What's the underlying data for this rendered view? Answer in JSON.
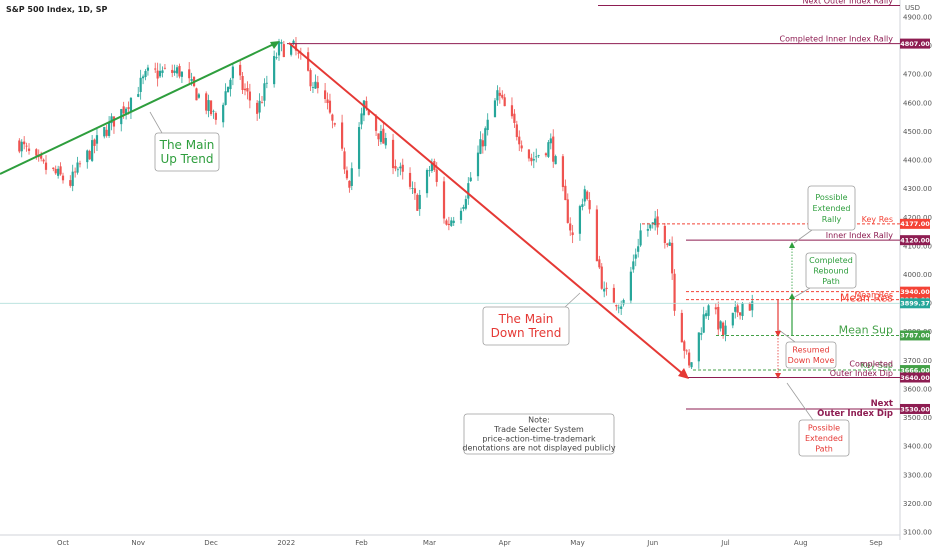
{
  "chart_data": {
    "type": "candlestick",
    "title": "S&P 500 Index, 1D, SP",
    "currency_label": "USD",
    "y_axis": {
      "min": 3100,
      "max": 4950,
      "ticks": [
        3100,
        3200,
        3300,
        3400,
        3500,
        3600,
        3700,
        3800,
        3900,
        4000,
        4100,
        4200,
        4300,
        4400,
        4500,
        4600,
        4700,
        4800,
        4900
      ],
      "tick_labels": [
        "3100.00",
        "3200.00",
        "3300.00",
        "3400.00",
        "3500.00",
        "3600.00",
        "3700.00",
        "3800.00",
        "3900.00",
        "4000.00",
        "4100.00",
        "4200.00",
        "4300.00",
        "4400.00",
        "4500.00",
        "4600.00",
        "4700.00",
        "4800.00",
        "4900.00"
      ]
    },
    "x_axis": {
      "start": "2021-09-13",
      "end": "2022-09-30",
      "labels": [
        {
          "text": "Oct",
          "date": "2021-10-01"
        },
        {
          "text": "Nov",
          "date": "2021-11-01"
        },
        {
          "text": "Dec",
          "date": "2021-12-01"
        },
        {
          "text": "2022",
          "date": "2022-01-01"
        },
        {
          "text": "Feb",
          "date": "2022-02-01"
        },
        {
          "text": "Mar",
          "date": "2022-03-01"
        },
        {
          "text": "Apr",
          "date": "2022-04-01"
        },
        {
          "text": "May",
          "date": "2022-05-01"
        },
        {
          "text": "Jun",
          "date": "2022-06-01"
        },
        {
          "text": "Jul",
          "date": "2022-07-01"
        },
        {
          "text": "Aug",
          "date": "2022-08-01"
        },
        {
          "text": "Sep",
          "date": "2022-09-01"
        }
      ]
    },
    "up_color": "#26a69a",
    "down_color": "#ef5350",
    "price_keypoints": [
      {
        "date": "2021-09-13",
        "price": 4460
      },
      {
        "date": "2021-09-20",
        "price": 4390
      },
      {
        "date": "2021-10-04",
        "price": 4320
      },
      {
        "date": "2021-10-08",
        "price": 4380
      },
      {
        "date": "2021-10-18",
        "price": 4500
      },
      {
        "date": "2021-10-25",
        "price": 4570
      },
      {
        "date": "2021-11-05",
        "price": 4700
      },
      {
        "date": "2021-11-18",
        "price": 4710
      },
      {
        "date": "2021-11-30",
        "price": 4580
      },
      {
        "date": "2021-12-03",
        "price": 4540
      },
      {
        "date": "2021-12-10",
        "price": 4710
      },
      {
        "date": "2021-12-20",
        "price": 4570
      },
      {
        "date": "2021-12-29",
        "price": 4790
      },
      {
        "date": "2022-01-04",
        "price": 4790
      },
      {
        "date": "2022-01-18",
        "price": 4580
      },
      {
        "date": "2022-01-27",
        "price": 4330
      },
      {
        "date": "2022-02-02",
        "price": 4590
      },
      {
        "date": "2022-02-14",
        "price": 4400
      },
      {
        "date": "2022-02-24",
        "price": 4250
      },
      {
        "date": "2022-03-02",
        "price": 4390
      },
      {
        "date": "2022-03-08",
        "price": 4170
      },
      {
        "date": "2022-03-15",
        "price": 4260
      },
      {
        "date": "2022-03-29",
        "price": 4630
      },
      {
        "date": "2022-04-12",
        "price": 4400
      },
      {
        "date": "2022-04-20",
        "price": 4460
      },
      {
        "date": "2022-04-29",
        "price": 4130
      },
      {
        "date": "2022-05-04",
        "price": 4300
      },
      {
        "date": "2022-05-12",
        "price": 3930
      },
      {
        "date": "2022-05-20",
        "price": 3900
      },
      {
        "date": "2022-05-27",
        "price": 4150
      },
      {
        "date": "2022-06-02",
        "price": 4170
      },
      {
        "date": "2022-06-08",
        "price": 4120
      },
      {
        "date": "2022-06-10",
        "price": 3900
      },
      {
        "date": "2022-06-16",
        "price": 3670
      },
      {
        "date": "2022-06-24",
        "price": 3910
      },
      {
        "date": "2022-06-30",
        "price": 3790
      },
      {
        "date": "2022-07-08",
        "price": 3900
      },
      {
        "date": "2022-07-12",
        "price": 3890
      }
    ],
    "levels": [
      {
        "name": "Next Outer Index Rally",
        "value": 4940,
        "color": "#8e1d52",
        "tag": null,
        "label_size": 8
      },
      {
        "name": "Completed Inner Index Rally",
        "value": 4807,
        "color": "#8e1d52",
        "tag": "4807.00",
        "label_size": 8
      },
      {
        "name": "Key Res",
        "value": 4177,
        "color": "#f44336",
        "tag": "4177.00",
        "label_size": 8,
        "dashed": true
      },
      {
        "name": "Inner Index Rally",
        "value": 4120,
        "color": "#8e1d52",
        "tag": "4120.00",
        "label_size": 8
      },
      {
        "name": "",
        "value": 3940,
        "color": "#f44336",
        "tag": "3940.00",
        "label_size": 8,
        "dashed": true
      },
      {
        "name": "Mean Res",
        "value": 3912,
        "color": "#f44336",
        "tag": "3912.00",
        "label_size": 8,
        "dashed": true
      },
      {
        "name": "Mean Res",
        "value": 3899.37,
        "color": "#f44336",
        "tag": "3899.37",
        "label_size": 11,
        "tag_color": "#26a69a"
      },
      {
        "name": "Mean Sup",
        "value": 3787,
        "color": "#43a047",
        "tag": "3787.00",
        "label_size": 11,
        "dashed": true
      },
      {
        "name": "Key Sup",
        "value": 3666,
        "color": "#43a047",
        "tag": "3666.00",
        "label_size": 8,
        "dashed": true
      },
      {
        "name": "Completed Outer Index Dip",
        "value": 3640,
        "color": "#8e1d52",
        "tag": "3640.00",
        "label_size": 8
      },
      {
        "name": "Next Outer Index Dip",
        "value": 3530,
        "color": "#8e1d52",
        "tag": "3530.00",
        "label_size": 8
      }
    ],
    "annotations": {
      "up_trend_label": [
        "The Main",
        "Up Trend"
      ],
      "down_trend_label": [
        "The Main",
        "Down Trend"
      ],
      "extended_rally": [
        "Possible",
        "Extended",
        "Rally"
      ],
      "rebound": [
        "Completed",
        "Rebound",
        "Path"
      ],
      "resumed": [
        "Resumed",
        "Down Move"
      ],
      "extended_path": [
        "Possible",
        "Extended",
        "Path"
      ],
      "note": [
        "Note:",
        "Trade Selecter System",
        "price-action-time-trademark",
        "denotations are not displayed publicly"
      ],
      "completed_dip_lines": [
        "Completed",
        "Outer Index Dip"
      ],
      "next_dip_lines": [
        "Next",
        "Outer Index Dip"
      ]
    }
  }
}
